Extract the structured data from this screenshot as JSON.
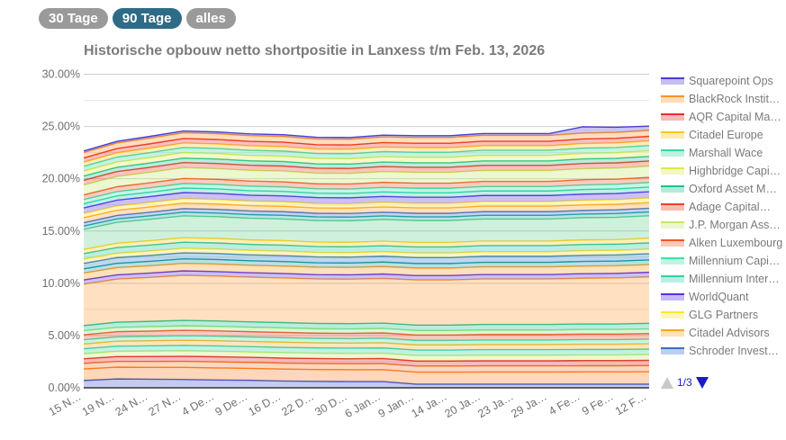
{
  "range_buttons": [
    {
      "label": "30 Tage",
      "active": false
    },
    {
      "label": "90 Tage",
      "active": true
    },
    {
      "label": "alles",
      "active": false
    }
  ],
  "legend_pager": {
    "label": "1/3"
  },
  "chart_data": {
    "type": "area",
    "stacked": true,
    "title": "Historische opbouw netto shortpositie in Lanxess t/m Feb. 13, 2026",
    "x": [
      "15 N…",
      "19 N…",
      "24 N…",
      "27 N…",
      "4 De…",
      "9 De…",
      "16 D…",
      "22 D…",
      "30 D…",
      "6 Jan…",
      "9 Jan…",
      "14 Ja…",
      "20 Ja…",
      "23 Ja…",
      "29 Ja…",
      "4 Fe…",
      "9 Fe…",
      "12 F…"
    ],
    "yticks": [
      "0.00%",
      "5.00%",
      "10.00%",
      "15.00%",
      "20.00%",
      "25.00%",
      "30.00%"
    ],
    "ylim": [
      0,
      30
    ],
    "grid": true,
    "legend_position": "right",
    "series": [
      {
        "name": "Squarepoint Ops",
        "color": "#4b3fd1",
        "values": [
          0.16,
          0.16,
          0.17,
          0.17,
          0.17,
          0.17,
          0.17,
          0.17,
          0.17,
          0.17,
          0.17,
          0.17,
          0.17,
          0.17,
          0.17,
          0.6,
          0.5,
          0.4
        ]
      },
      {
        "name": "BlackRock Instit…",
        "color": "#ff9326",
        "values": [
          0.51,
          0.53,
          0.54,
          0.55,
          0.55,
          0.54,
          0.54,
          0.54,
          0.54,
          0.54,
          0.55,
          0.55,
          0.56,
          0.56,
          0.56,
          0.56,
          0.56,
          0.57
        ]
      },
      {
        "name": "AQR Capital Ma…",
        "color": "#e8302a",
        "values": [
          0.4,
          0.41,
          0.42,
          0.43,
          0.43,
          0.43,
          0.43,
          0.42,
          0.42,
          0.43,
          0.43,
          0.43,
          0.43,
          0.43,
          0.43,
          0.44,
          0.44,
          0.44
        ]
      },
      {
        "name": "Citadel Europe",
        "color": "#ffc425",
        "values": [
          0.4,
          0.41,
          0.42,
          0.43,
          0.43,
          0.43,
          0.43,
          0.42,
          0.42,
          0.43,
          0.43,
          0.43,
          0.43,
          0.43,
          0.43,
          0.44,
          0.44,
          0.44
        ]
      },
      {
        "name": "Marshall Wace",
        "color": "#3dd6a0",
        "values": [
          0.45,
          0.47,
          0.48,
          0.49,
          0.49,
          0.49,
          0.49,
          0.48,
          0.48,
          0.49,
          0.49,
          0.49,
          0.49,
          0.49,
          0.49,
          0.5,
          0.5,
          0.5
        ]
      },
      {
        "name": "Highbridge Capi…",
        "color": "#dfe84a",
        "values": [
          0.48,
          0.5,
          0.51,
          0.52,
          0.52,
          0.51,
          0.51,
          0.51,
          0.51,
          0.51,
          0.52,
          0.52,
          0.53,
          0.53,
          0.53,
          0.53,
          0.53,
          0.54
        ]
      },
      {
        "name": "Oxford Asset M…",
        "color": "#1fbf8f",
        "values": [
          0.4,
          0.41,
          0.42,
          0.43,
          0.43,
          0.43,
          0.43,
          0.42,
          0.42,
          0.43,
          0.43,
          0.43,
          0.43,
          0.43,
          0.43,
          0.44,
          0.44,
          0.44
        ]
      },
      {
        "name": "Adage Capital…",
        "color": "#ee3f22",
        "values": [
          0.45,
          0.47,
          0.48,
          0.49,
          0.49,
          0.49,
          0.49,
          0.48,
          0.48,
          0.49,
          0.49,
          0.49,
          0.49,
          0.49,
          0.49,
          0.5,
          0.5,
          0.5
        ]
      },
      {
        "name": "J.P. Morgan Ass…",
        "color": "#c4e86a",
        "values": [
          0.95,
          0.98,
          1.0,
          1.03,
          1.02,
          1.02,
          1.02,
          1.01,
          1.01,
          1.02,
          1.03,
          1.03,
          1.04,
          1.04,
          1.04,
          1.05,
          1.05,
          1.06
        ]
      },
      {
        "name": "Alken Luxembourg",
        "color": "#f2562a",
        "values": [
          0.45,
          0.47,
          0.48,
          0.49,
          0.49,
          0.49,
          0.49,
          0.48,
          0.48,
          0.49,
          0.49,
          0.49,
          0.49,
          0.49,
          0.49,
          0.5,
          0.5,
          0.5
        ]
      },
      {
        "name": "Millennium Capi…",
        "color": "#3ee0a8",
        "values": [
          0.4,
          0.41,
          0.42,
          0.43,
          0.43,
          0.43,
          0.43,
          0.42,
          0.42,
          0.43,
          0.43,
          0.43,
          0.43,
          0.43,
          0.43,
          0.44,
          0.44,
          0.44
        ]
      },
      {
        "name": "Millennium Inter…",
        "color": "#2fd1a8",
        "values": [
          0.4,
          0.41,
          0.42,
          0.43,
          0.43,
          0.43,
          0.43,
          0.42,
          0.42,
          0.43,
          0.43,
          0.43,
          0.43,
          0.43,
          0.43,
          0.44,
          0.44,
          0.44
        ]
      },
      {
        "name": "WorldQuant",
        "color": "#5a2fe0",
        "values": [
          0.53,
          0.55,
          0.57,
          0.58,
          0.58,
          0.57,
          0.57,
          0.57,
          0.57,
          0.57,
          0.58,
          0.58,
          0.59,
          0.59,
          0.59,
          0.59,
          0.59,
          0.6
        ]
      },
      {
        "name": "GLG Partners",
        "color": "#ffe62e",
        "values": [
          0.4,
          0.41,
          0.42,
          0.43,
          0.43,
          0.43,
          0.43,
          0.42,
          0.42,
          0.43,
          0.43,
          0.43,
          0.43,
          0.43,
          0.43,
          0.44,
          0.44,
          0.44
        ]
      },
      {
        "name": "Citadel Advisors",
        "color": "#ffa326",
        "values": [
          0.48,
          0.5,
          0.51,
          0.52,
          0.52,
          0.51,
          0.51,
          0.51,
          0.51,
          0.51,
          0.52,
          0.52,
          0.53,
          0.53,
          0.53,
          0.53,
          0.53,
          0.54
        ]
      },
      {
        "name": "Schroder Invest…",
        "color": "#3a6fcc",
        "values": [
          0.32,
          0.33,
          0.34,
          0.35,
          0.35,
          0.35,
          0.35,
          0.35,
          0.35,
          0.35,
          0.35,
          0.35,
          0.35,
          0.35,
          0.35,
          0.35,
          0.36,
          0.36
        ]
      },
      {
        "color": "#1fa8a0",
        "values": [
          0.32,
          0.33,
          0.34,
          0.35,
          0.35,
          0.35,
          0.35,
          0.35,
          0.35,
          0.35,
          0.35,
          0.35,
          0.35,
          0.35,
          0.35,
          0.35,
          0.36,
          0.36
        ]
      },
      {
        "color": "#5fd08a",
        "values": [
          1.92,
          2.0,
          2.04,
          2.09,
          2.08,
          2.07,
          2.07,
          2.06,
          2.06,
          2.07,
          2.09,
          2.09,
          2.11,
          2.11,
          2.11,
          2.12,
          2.13,
          2.15
        ]
      },
      {
        "color": "#ffcc22",
        "values": [
          0.4,
          0.41,
          0.42,
          0.43,
          0.43,
          0.43,
          0.43,
          0.42,
          0.42,
          0.43,
          0.43,
          0.43,
          0.43,
          0.43,
          0.43,
          0.44,
          0.44,
          0.44
        ]
      },
      {
        "color": "#22c29a",
        "values": [
          0.53,
          0.55,
          0.57,
          0.58,
          0.58,
          0.57,
          0.57,
          0.57,
          0.57,
          0.57,
          0.58,
          0.58,
          0.59,
          0.59,
          0.59,
          0.59,
          0.59,
          0.6
        ]
      },
      {
        "color": "#ffdd33",
        "values": [
          0.4,
          0.41,
          0.42,
          0.43,
          0.43,
          0.43,
          0.43,
          0.42,
          0.42,
          0.43,
          0.43,
          0.43,
          0.43,
          0.43,
          0.43,
          0.44,
          0.44,
          0.44
        ]
      },
      {
        "color": "#2a7fc0",
        "values": [
          0.53,
          0.55,
          0.57,
          0.58,
          0.58,
          0.57,
          0.57,
          0.57,
          0.57,
          0.57,
          0.58,
          0.58,
          0.59,
          0.59,
          0.59,
          0.59,
          0.59,
          0.6
        ]
      },
      {
        "color": "#1a9aa0",
        "values": [
          0.4,
          0.41,
          0.42,
          0.43,
          0.43,
          0.43,
          0.43,
          0.42,
          0.42,
          0.43,
          0.43,
          0.43,
          0.43,
          0.43,
          0.43,
          0.44,
          0.44,
          0.44
        ]
      },
      {
        "color": "#ff9a22",
        "values": [
          0.66,
          0.69,
          0.7,
          0.72,
          0.72,
          0.71,
          0.71,
          0.71,
          0.71,
          0.71,
          0.72,
          0.72,
          0.73,
          0.73,
          0.73,
          0.73,
          0.73,
          0.74
        ]
      },
      {
        "color": "#5a2fe0",
        "values": [
          0.4,
          0.41,
          0.42,
          0.43,
          0.43,
          0.43,
          0.43,
          0.42,
          0.42,
          0.43,
          0.43,
          0.43,
          0.43,
          0.43,
          0.43,
          0.44,
          0.44,
          0.44
        ]
      },
      {
        "color": "#ff9a33",
        "values": [
          3.97,
          4.12,
          4.2,
          4.31,
          4.29,
          4.27,
          4.27,
          4.25,
          4.25,
          4.27,
          4.31,
          4.31,
          4.35,
          4.35,
          4.35,
          4.37,
          4.4,
          4.44
        ]
      },
      {
        "color": "#1fbf8f",
        "values": [
          0.48,
          0.5,
          0.51,
          0.52,
          0.52,
          0.51,
          0.51,
          0.51,
          0.51,
          0.51,
          0.52,
          0.52,
          0.53,
          0.53,
          0.53,
          0.53,
          0.53,
          0.54
        ]
      },
      {
        "color": "#8ee07a",
        "values": [
          0.4,
          0.41,
          0.42,
          0.43,
          0.43,
          0.43,
          0.43,
          0.42,
          0.42,
          0.43,
          0.43,
          0.43,
          0.43,
          0.43,
          0.43,
          0.44,
          0.44,
          0.44
        ]
      },
      {
        "color": "#f0502a",
        "values": [
          0.48,
          0.5,
          0.51,
          0.52,
          0.52,
          0.51,
          0.51,
          0.51,
          0.51,
          0.51,
          0.52,
          0.52,
          0.53,
          0.53,
          0.53,
          0.53,
          0.53,
          0.54
        ]
      },
      {
        "color": "#44dda6",
        "values": [
          0.4,
          0.41,
          0.42,
          0.43,
          0.43,
          0.43,
          0.43,
          0.42,
          0.42,
          0.43,
          0.43,
          0.43,
          0.43,
          0.43,
          0.43,
          0.44,
          0.44,
          0.44
        ]
      },
      {
        "color": "#ffb022",
        "values": [
          0.45,
          0.47,
          0.48,
          0.49,
          0.49,
          0.49,
          0.49,
          0.48,
          0.48,
          0.49,
          0.49,
          0.49,
          0.49,
          0.49,
          0.49,
          0.5,
          0.5,
          0.5
        ]
      },
      {
        "color": "#2fd1a8",
        "values": [
          0.48,
          0.5,
          0.51,
          0.52,
          0.52,
          0.51,
          0.51,
          0.51,
          0.51,
          0.51,
          0.52,
          0.52,
          0.53,
          0.53,
          0.53,
          0.53,
          0.53,
          0.54
        ]
      },
      {
        "color": "#c4e86a",
        "values": [
          0.48,
          0.5,
          0.51,
          0.52,
          0.52,
          0.51,
          0.51,
          0.51,
          0.51,
          0.51,
          0.52,
          0.52,
          0.53,
          0.53,
          0.53,
          0.53,
          0.53,
          0.54
        ]
      },
      {
        "color": "#e52020",
        "values": [
          0.45,
          0.47,
          0.48,
          0.49,
          0.49,
          0.49,
          0.49,
          0.48,
          0.48,
          0.49,
          0.49,
          0.49,
          0.49,
          0.49,
          0.49,
          0.5,
          0.5,
          0.5
        ]
      },
      {
        "color": "#f07a2a",
        "values": [
          0.53,
          0.55,
          0.57,
          0.58,
          0.58,
          0.57,
          0.57,
          0.57,
          0.57,
          0.57,
          0.58,
          0.58,
          0.59,
          0.59,
          0.59,
          0.59,
          0.59,
          0.6
        ]
      },
      {
        "color": "#ff7a1a",
        "values": [
          1.1,
          1.12,
          1.13,
          1.15,
          1.15,
          1.14,
          1.14,
          1.13,
          1.13,
          1.14,
          1.15,
          1.15,
          1.16,
          1.16,
          1.16,
          1.17,
          1.17,
          1.18
        ]
      },
      {
        "color": "#3a4fcc",
        "values": [
          0.7,
          0.85,
          0.82,
          0.8,
          0.75,
          0.72,
          0.65,
          0.62,
          0.6,
          0.6,
          0.35,
          0.35,
          0.35,
          0.35,
          0.35,
          0.35,
          0.35,
          0.35
        ]
      }
    ]
  }
}
